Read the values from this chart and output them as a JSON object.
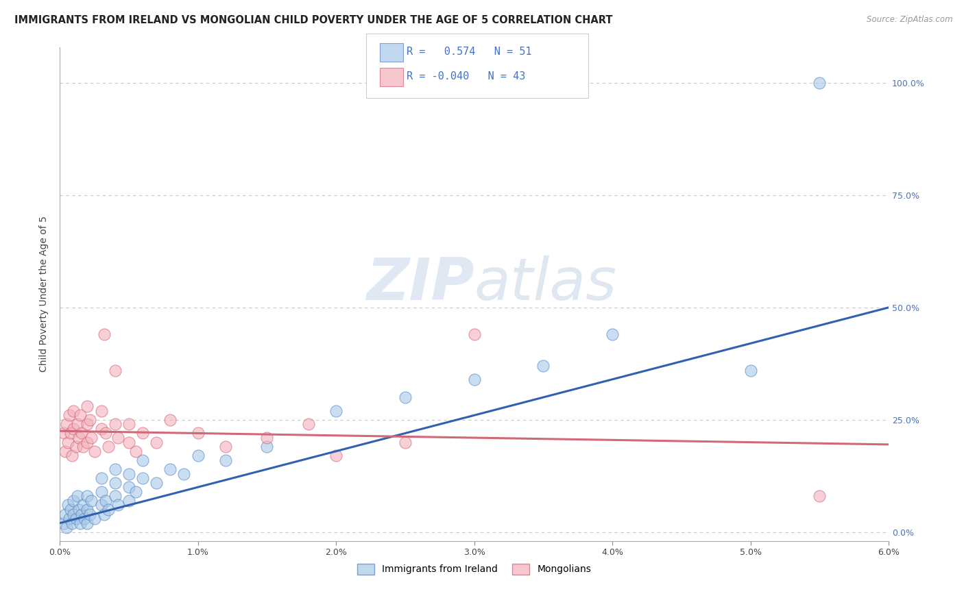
{
  "title": "IMMIGRANTS FROM IRELAND VS MONGOLIAN CHILD POVERTY UNDER THE AGE OF 5 CORRELATION CHART",
  "source": "Source: ZipAtlas.com",
  "ylabel": "Child Poverty Under the Age of 5",
  "xlim": [
    0.0,
    0.06
  ],
  "ylim": [
    -0.02,
    1.08
  ],
  "yticks": [
    0.0,
    0.25,
    0.5,
    0.75,
    1.0
  ],
  "ytick_labels": [
    "0.0%",
    "25.0%",
    "50.0%",
    "75.0%",
    "100.0%"
  ],
  "xticks": [
    0.0,
    0.01,
    0.02,
    0.03,
    0.04,
    0.05,
    0.06
  ],
  "xtick_labels": [
    "0.0%",
    "1.0%",
    "2.0%",
    "3.0%",
    "4.0%",
    "5.0%",
    "6.0%"
  ],
  "legend_r1": " 0.574",
  "legend_n1": "51",
  "legend_r2": "-0.040",
  "legend_n2": "43",
  "ireland_color": "#a8c8e8",
  "mongolian_color": "#f4b0bc",
  "ireland_edge_color": "#5080c0",
  "mongolian_edge_color": "#d06070",
  "ireland_line_color": "#3060b0",
  "mongolian_line_color": "#d06878",
  "r_value_color": "#4472c4",
  "watermark_color": "#c8d8e8",
  "background_color": "#ffffff",
  "grid_color": "#c8c8c8",
  "title_color": "#222222",
  "right_tick_color": "#4472c4",
  "ireland_line_x0": 0.0,
  "ireland_line_y0": 0.02,
  "ireland_line_x1": 0.06,
  "ireland_line_y1": 0.5,
  "mongolian_line_x0": 0.0,
  "mongolian_line_y0": 0.225,
  "mongolian_line_x1": 0.06,
  "mongolian_line_y1": 0.195,
  "ireland_scatter": [
    [
      0.0003,
      0.02
    ],
    [
      0.0004,
      0.04
    ],
    [
      0.0005,
      0.01
    ],
    [
      0.0006,
      0.06
    ],
    [
      0.0007,
      0.03
    ],
    [
      0.0008,
      0.05
    ],
    [
      0.0009,
      0.02
    ],
    [
      0.001,
      0.04
    ],
    [
      0.001,
      0.07
    ],
    [
      0.0012,
      0.03
    ],
    [
      0.0013,
      0.08
    ],
    [
      0.0014,
      0.05
    ],
    [
      0.0015,
      0.02
    ],
    [
      0.0016,
      0.04
    ],
    [
      0.0017,
      0.06
    ],
    [
      0.0018,
      0.03
    ],
    [
      0.002,
      0.05
    ],
    [
      0.002,
      0.08
    ],
    [
      0.002,
      0.02
    ],
    [
      0.0022,
      0.04
    ],
    [
      0.0023,
      0.07
    ],
    [
      0.0025,
      0.03
    ],
    [
      0.003,
      0.06
    ],
    [
      0.003,
      0.09
    ],
    [
      0.003,
      0.12
    ],
    [
      0.0032,
      0.04
    ],
    [
      0.0033,
      0.07
    ],
    [
      0.0035,
      0.05
    ],
    [
      0.004,
      0.08
    ],
    [
      0.004,
      0.11
    ],
    [
      0.004,
      0.14
    ],
    [
      0.0042,
      0.06
    ],
    [
      0.005,
      0.1
    ],
    [
      0.005,
      0.13
    ],
    [
      0.005,
      0.07
    ],
    [
      0.0055,
      0.09
    ],
    [
      0.006,
      0.12
    ],
    [
      0.006,
      0.16
    ],
    [
      0.007,
      0.11
    ],
    [
      0.008,
      0.14
    ],
    [
      0.009,
      0.13
    ],
    [
      0.01,
      0.17
    ],
    [
      0.012,
      0.16
    ],
    [
      0.015,
      0.19
    ],
    [
      0.02,
      0.27
    ],
    [
      0.025,
      0.3
    ],
    [
      0.03,
      0.34
    ],
    [
      0.035,
      0.37
    ],
    [
      0.04,
      0.44
    ],
    [
      0.05,
      0.36
    ],
    [
      0.055,
      1.0
    ]
  ],
  "mongolian_scatter": [
    [
      0.0003,
      0.22
    ],
    [
      0.0004,
      0.18
    ],
    [
      0.0005,
      0.24
    ],
    [
      0.0006,
      0.2
    ],
    [
      0.0007,
      0.26
    ],
    [
      0.0008,
      0.22
    ],
    [
      0.0009,
      0.17
    ],
    [
      0.001,
      0.23
    ],
    [
      0.001,
      0.27
    ],
    [
      0.0012,
      0.19
    ],
    [
      0.0013,
      0.24
    ],
    [
      0.0014,
      0.21
    ],
    [
      0.0015,
      0.26
    ],
    [
      0.0016,
      0.22
    ],
    [
      0.0017,
      0.19
    ],
    [
      0.002,
      0.24
    ],
    [
      0.002,
      0.2
    ],
    [
      0.002,
      0.28
    ],
    [
      0.0022,
      0.25
    ],
    [
      0.0023,
      0.21
    ],
    [
      0.0025,
      0.18
    ],
    [
      0.003,
      0.23
    ],
    [
      0.003,
      0.27
    ],
    [
      0.0032,
      0.44
    ],
    [
      0.0033,
      0.22
    ],
    [
      0.0035,
      0.19
    ],
    [
      0.004,
      0.24
    ],
    [
      0.004,
      0.36
    ],
    [
      0.0042,
      0.21
    ],
    [
      0.005,
      0.2
    ],
    [
      0.005,
      0.24
    ],
    [
      0.0055,
      0.18
    ],
    [
      0.006,
      0.22
    ],
    [
      0.007,
      0.2
    ],
    [
      0.008,
      0.25
    ],
    [
      0.01,
      0.22
    ],
    [
      0.012,
      0.19
    ],
    [
      0.015,
      0.21
    ],
    [
      0.018,
      0.24
    ],
    [
      0.02,
      0.17
    ],
    [
      0.025,
      0.2
    ],
    [
      0.03,
      0.44
    ],
    [
      0.055,
      0.08
    ]
  ]
}
